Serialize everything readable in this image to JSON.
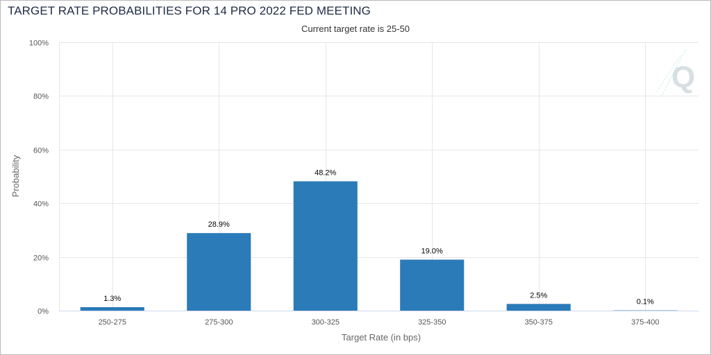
{
  "chart_data": {
    "type": "bar",
    "title": "TARGET RATE PROBABILITIES FOR 14 PRO 2022 FED MEETING",
    "subtitle": "Current target rate is 25-50",
    "xlabel": "Target Rate (in bps)",
    "ylabel": "Probability",
    "categories": [
      "250-275",
      "275-300",
      "300-325",
      "325-350",
      "350-375",
      "375-400"
    ],
    "values": [
      1.3,
      28.9,
      48.2,
      19.0,
      2.5,
      0.1
    ],
    "data_labels": [
      "1.3%",
      "28.9%",
      "48.2%",
      "19.0%",
      "2.5%",
      "0.1%"
    ],
    "ylim": [
      0,
      100
    ],
    "yticks": [
      0,
      20,
      40,
      60,
      80,
      100
    ],
    "ytick_labels": [
      "0%",
      "20%",
      "40%",
      "60%",
      "80%",
      "100%"
    ],
    "grid": true,
    "bar_color": "#2b7bb9",
    "logo": "Q"
  }
}
